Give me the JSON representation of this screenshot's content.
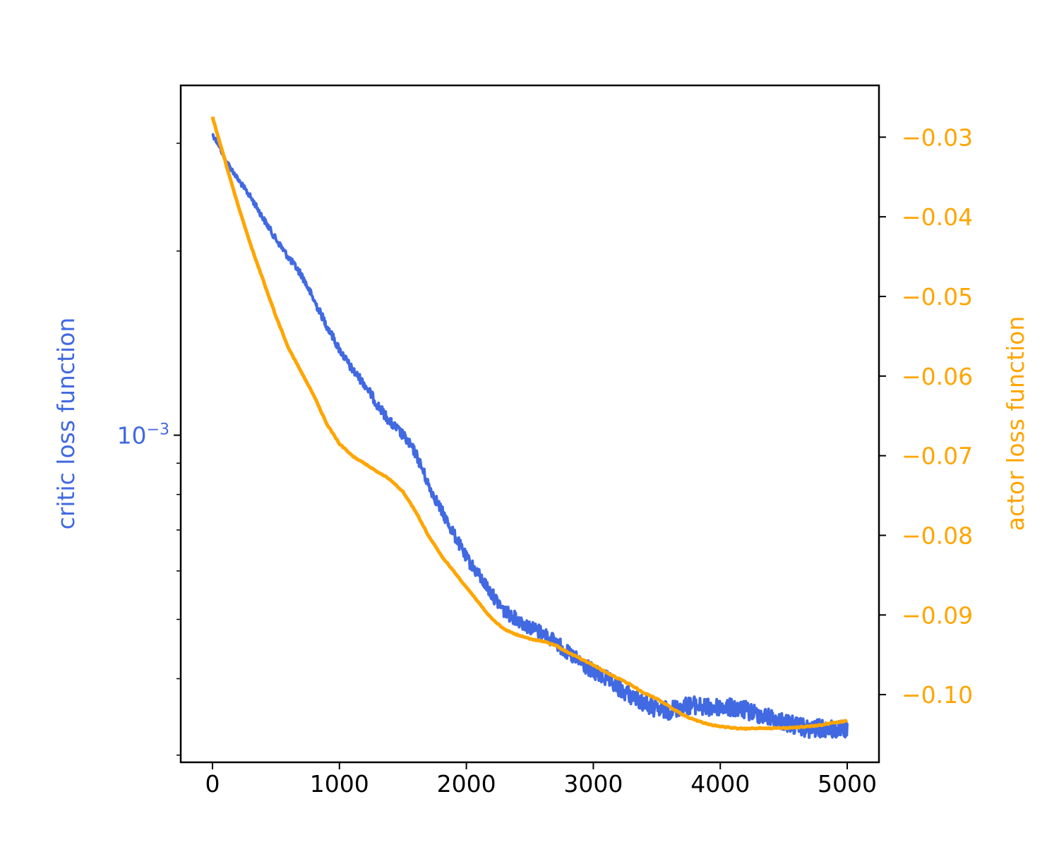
{
  "chart_data": {
    "type": "line",
    "title": "",
    "x_axis": {
      "label": "",
      "range": [
        -250,
        5250
      ],
      "ticks": [
        0,
        1000,
        2000,
        3000,
        4000,
        5000
      ],
      "tick_labels": [
        "0",
        "1000",
        "2000",
        "3000",
        "4000",
        "5000"
      ]
    },
    "left_axis": {
      "label": "critic loss function",
      "scale": "log",
      "range": [
        0.000292,
        0.00373
      ],
      "major_ticks": [
        0.001
      ],
      "major_tick_labels": [
        "10^-3"
      ],
      "color": "#4169e1"
    },
    "right_axis": {
      "label": "actor loss function",
      "scale": "linear",
      "range": [
        -0.1085,
        -0.0235
      ],
      "ticks": [
        -0.03,
        -0.04,
        -0.05,
        -0.06,
        -0.07,
        -0.08,
        -0.09,
        -0.1
      ],
      "tick_labels": [
        "−0.03",
        "−0.04",
        "−0.05",
        "−0.06",
        "−0.07",
        "−0.08",
        "−0.09",
        "−0.10"
      ],
      "color": "#ffa500"
    },
    "series": [
      {
        "axis": "left",
        "color": "#4169e1",
        "noisy": true,
        "x": [
          0,
          50,
          100,
          200,
          300,
          400,
          500,
          600,
          700,
          800,
          900,
          1000,
          1100,
          1200,
          1300,
          1400,
          1500,
          1600,
          1700,
          1800,
          1900,
          2000,
          2100,
          2200,
          2300,
          2400,
          2500,
          2600,
          2700,
          2800,
          2900,
          3000,
          3100,
          3200,
          3300,
          3400,
          3500,
          3600,
          3700,
          3800,
          3900,
          4000,
          4100,
          4200,
          4300,
          4400,
          4500,
          4600,
          4700,
          4800,
          4900,
          5000
        ],
        "y": [
          0.0031,
          0.00298,
          0.00282,
          0.00262,
          0.00245,
          0.00226,
          0.00209,
          0.00195,
          0.00183,
          0.00166,
          0.00151,
          0.00138,
          0.00128,
          0.00121,
          0.00112,
          0.00105,
          0.001,
          0.000935,
          0.00083,
          0.000755,
          0.00069,
          0.00063,
          0.00059,
          0.00055,
          0.000515,
          0.0005,
          0.000485,
          0.000475,
          0.00046,
          0.00044,
          0.000425,
          0.00041,
          0.0004,
          0.000385,
          0.000375,
          0.000365,
          0.000355,
          0.000355,
          0.00036,
          0.000362,
          0.000358,
          0.00036,
          0.000358,
          0.000355,
          0.00035,
          0.000345,
          0.00034,
          0.000335,
          0.00033,
          0.000332,
          0.00033,
          0.00033
        ]
      },
      {
        "axis": "right",
        "color": "#ffa500",
        "noisy": false,
        "x": [
          0,
          100,
          200,
          300,
          400,
          500,
          600,
          700,
          800,
          900,
          1000,
          1100,
          1200,
          1300,
          1400,
          1500,
          1600,
          1700,
          1800,
          1900,
          2000,
          2100,
          2200,
          2300,
          2400,
          2500,
          2600,
          2700,
          2800,
          2900,
          3000,
          3100,
          3200,
          3300,
          3400,
          3500,
          3600,
          3700,
          3800,
          3900,
          4000,
          4100,
          4200,
          4300,
          4400,
          4500,
          4600,
          4700,
          4800,
          4900,
          5000
        ],
        "y": [
          -0.0275,
          -0.033,
          -0.0385,
          -0.0435,
          -0.048,
          -0.0525,
          -0.0565,
          -0.0595,
          -0.0625,
          -0.066,
          -0.0685,
          -0.07,
          -0.071,
          -0.072,
          -0.073,
          -0.0745,
          -0.077,
          -0.08,
          -0.0825,
          -0.0845,
          -0.0865,
          -0.0885,
          -0.0905,
          -0.0918,
          -0.0925,
          -0.093,
          -0.0933,
          -0.0938,
          -0.0947,
          -0.0955,
          -0.0963,
          -0.0972,
          -0.098,
          -0.0988,
          -0.0998,
          -0.1005,
          -0.1015,
          -0.1025,
          -0.1032,
          -0.1037,
          -0.104,
          -0.1042,
          -0.1043,
          -0.1042,
          -0.1042,
          -0.1042,
          -0.1041,
          -0.104,
          -0.1038,
          -0.1035,
          -0.1033
        ]
      }
    ]
  }
}
